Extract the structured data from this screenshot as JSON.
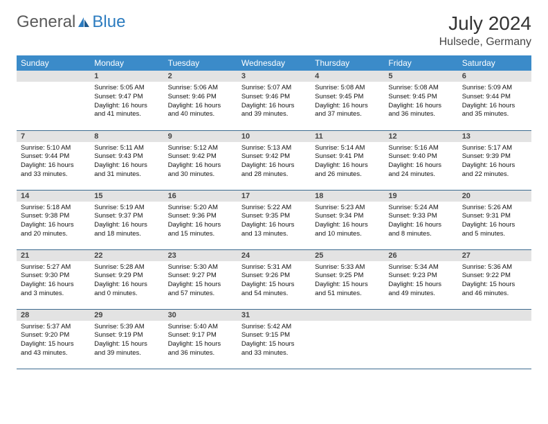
{
  "brand": {
    "part1": "General",
    "part2": "Blue"
  },
  "title": "July 2024",
  "location": "Hulsede, Germany",
  "colors": {
    "header_bg": "#3b8bc9",
    "header_text": "#ffffff",
    "daynum_bg": "#e3e3e3",
    "border": "#3b6a8f",
    "logo_gray": "#5a5a5a",
    "logo_blue": "#2b7bbf"
  },
  "weekdays": [
    "Sunday",
    "Monday",
    "Tuesday",
    "Wednesday",
    "Thursday",
    "Friday",
    "Saturday"
  ],
  "weeks": [
    [
      {
        "day": "",
        "sunrise": "",
        "sunset": "",
        "daylight": ""
      },
      {
        "day": "1",
        "sunrise": "5:05 AM",
        "sunset": "9:47 PM",
        "daylight": "16 hours and 41 minutes."
      },
      {
        "day": "2",
        "sunrise": "5:06 AM",
        "sunset": "9:46 PM",
        "daylight": "16 hours and 40 minutes."
      },
      {
        "day": "3",
        "sunrise": "5:07 AM",
        "sunset": "9:46 PM",
        "daylight": "16 hours and 39 minutes."
      },
      {
        "day": "4",
        "sunrise": "5:08 AM",
        "sunset": "9:45 PM",
        "daylight": "16 hours and 37 minutes."
      },
      {
        "day": "5",
        "sunrise": "5:08 AM",
        "sunset": "9:45 PM",
        "daylight": "16 hours and 36 minutes."
      },
      {
        "day": "6",
        "sunrise": "5:09 AM",
        "sunset": "9:44 PM",
        "daylight": "16 hours and 35 minutes."
      }
    ],
    [
      {
        "day": "7",
        "sunrise": "5:10 AM",
        "sunset": "9:44 PM",
        "daylight": "16 hours and 33 minutes."
      },
      {
        "day": "8",
        "sunrise": "5:11 AM",
        "sunset": "9:43 PM",
        "daylight": "16 hours and 31 minutes."
      },
      {
        "day": "9",
        "sunrise": "5:12 AM",
        "sunset": "9:42 PM",
        "daylight": "16 hours and 30 minutes."
      },
      {
        "day": "10",
        "sunrise": "5:13 AM",
        "sunset": "9:42 PM",
        "daylight": "16 hours and 28 minutes."
      },
      {
        "day": "11",
        "sunrise": "5:14 AM",
        "sunset": "9:41 PM",
        "daylight": "16 hours and 26 minutes."
      },
      {
        "day": "12",
        "sunrise": "5:16 AM",
        "sunset": "9:40 PM",
        "daylight": "16 hours and 24 minutes."
      },
      {
        "day": "13",
        "sunrise": "5:17 AM",
        "sunset": "9:39 PM",
        "daylight": "16 hours and 22 minutes."
      }
    ],
    [
      {
        "day": "14",
        "sunrise": "5:18 AM",
        "sunset": "9:38 PM",
        "daylight": "16 hours and 20 minutes."
      },
      {
        "day": "15",
        "sunrise": "5:19 AM",
        "sunset": "9:37 PM",
        "daylight": "16 hours and 18 minutes."
      },
      {
        "day": "16",
        "sunrise": "5:20 AM",
        "sunset": "9:36 PM",
        "daylight": "16 hours and 15 minutes."
      },
      {
        "day": "17",
        "sunrise": "5:22 AM",
        "sunset": "9:35 PM",
        "daylight": "16 hours and 13 minutes."
      },
      {
        "day": "18",
        "sunrise": "5:23 AM",
        "sunset": "9:34 PM",
        "daylight": "16 hours and 10 minutes."
      },
      {
        "day": "19",
        "sunrise": "5:24 AM",
        "sunset": "9:33 PM",
        "daylight": "16 hours and 8 minutes."
      },
      {
        "day": "20",
        "sunrise": "5:26 AM",
        "sunset": "9:31 PM",
        "daylight": "16 hours and 5 minutes."
      }
    ],
    [
      {
        "day": "21",
        "sunrise": "5:27 AM",
        "sunset": "9:30 PM",
        "daylight": "16 hours and 3 minutes."
      },
      {
        "day": "22",
        "sunrise": "5:28 AM",
        "sunset": "9:29 PM",
        "daylight": "16 hours and 0 minutes."
      },
      {
        "day": "23",
        "sunrise": "5:30 AM",
        "sunset": "9:27 PM",
        "daylight": "15 hours and 57 minutes."
      },
      {
        "day": "24",
        "sunrise": "5:31 AM",
        "sunset": "9:26 PM",
        "daylight": "15 hours and 54 minutes."
      },
      {
        "day": "25",
        "sunrise": "5:33 AM",
        "sunset": "9:25 PM",
        "daylight": "15 hours and 51 minutes."
      },
      {
        "day": "26",
        "sunrise": "5:34 AM",
        "sunset": "9:23 PM",
        "daylight": "15 hours and 49 minutes."
      },
      {
        "day": "27",
        "sunrise": "5:36 AM",
        "sunset": "9:22 PM",
        "daylight": "15 hours and 46 minutes."
      }
    ],
    [
      {
        "day": "28",
        "sunrise": "5:37 AM",
        "sunset": "9:20 PM",
        "daylight": "15 hours and 43 minutes."
      },
      {
        "day": "29",
        "sunrise": "5:39 AM",
        "sunset": "9:19 PM",
        "daylight": "15 hours and 39 minutes."
      },
      {
        "day": "30",
        "sunrise": "5:40 AM",
        "sunset": "9:17 PM",
        "daylight": "15 hours and 36 minutes."
      },
      {
        "day": "31",
        "sunrise": "5:42 AM",
        "sunset": "9:15 PM",
        "daylight": "15 hours and 33 minutes."
      },
      {
        "day": "",
        "sunrise": "",
        "sunset": "",
        "daylight": ""
      },
      {
        "day": "",
        "sunrise": "",
        "sunset": "",
        "daylight": ""
      },
      {
        "day": "",
        "sunrise": "",
        "sunset": "",
        "daylight": ""
      }
    ]
  ],
  "labels": {
    "sunrise": "Sunrise:",
    "sunset": "Sunset:",
    "daylight": "Daylight:"
  }
}
